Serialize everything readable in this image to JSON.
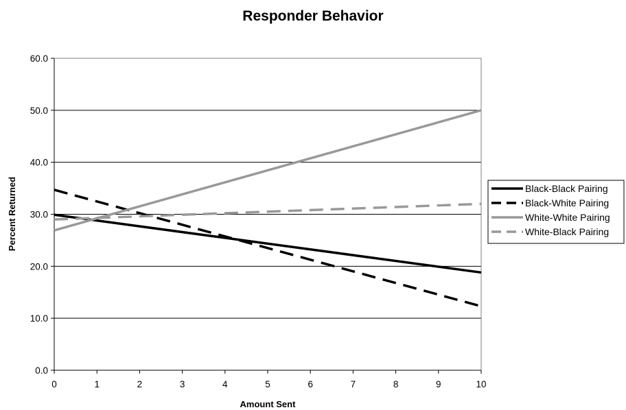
{
  "chart_data": {
    "type": "line",
    "title": "Responder Behavior",
    "xlabel": "Amount Sent",
    "ylabel": "Percent Returned",
    "x": [
      0,
      10
    ],
    "xlim": [
      0,
      10
    ],
    "ylim": [
      0,
      60
    ],
    "x_ticks": [
      "0",
      "1",
      "2",
      "3",
      "4",
      "5",
      "6",
      "7",
      "8",
      "9",
      "10"
    ],
    "y_ticks": [
      "0.0",
      "10.0",
      "20.0",
      "30.0",
      "40.0",
      "50.0",
      "60.0"
    ],
    "grid": "horizontal",
    "legend_position": "right",
    "series": [
      {
        "name": "Black-Black Pairing",
        "values": [
          29.9,
          18.8
        ],
        "color": "#000000",
        "dash": "solid"
      },
      {
        "name": "Black-White Pairing",
        "values": [
          34.7,
          12.3
        ],
        "color": "#000000",
        "dash": "dashed"
      },
      {
        "name": "White-White Pairing",
        "values": [
          26.9,
          50.0
        ],
        "color": "#999999",
        "dash": "solid"
      },
      {
        "name": "White-Black Pairing",
        "values": [
          29.0,
          32.0
        ],
        "color": "#999999",
        "dash": "dashed"
      }
    ]
  }
}
